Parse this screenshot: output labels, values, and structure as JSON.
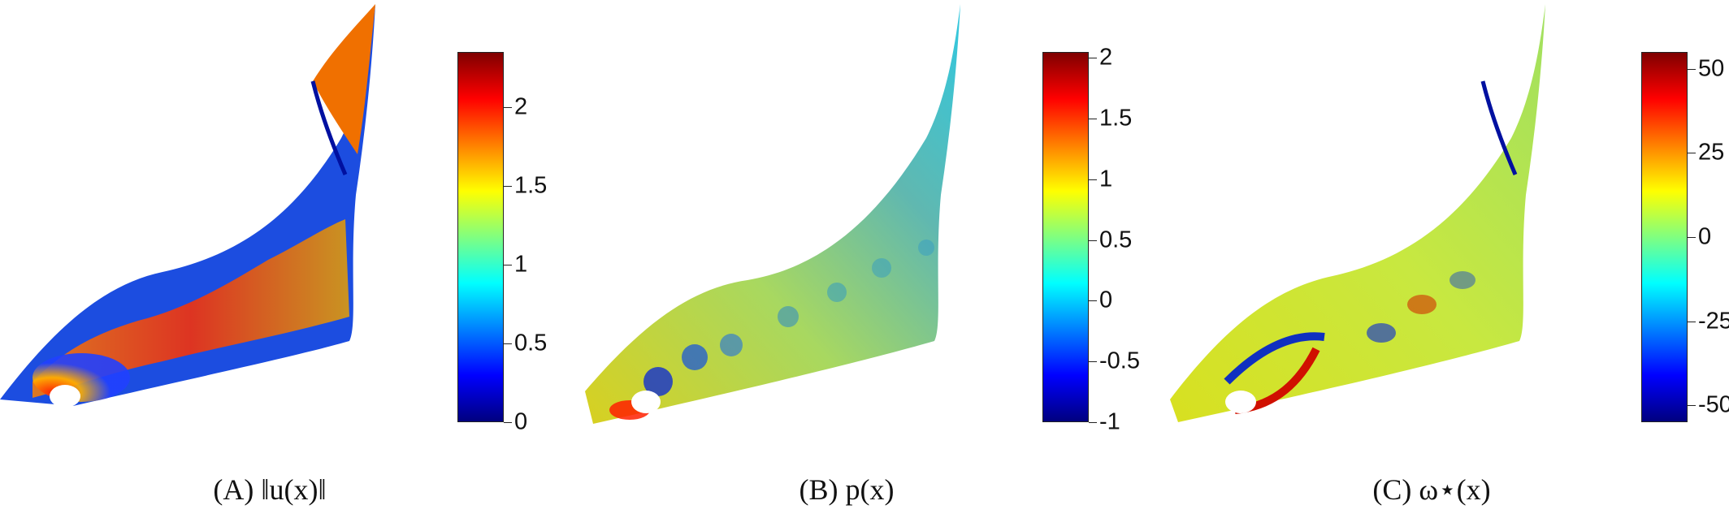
{
  "colormap": [
    "#00007f",
    "#0000ff",
    "#0080ff",
    "#00ffff",
    "#80ff80",
    "#ffff00",
    "#ff8000",
    "#ff0000",
    "#7f0000"
  ],
  "panels": [
    {
      "caption": "(A)  ‖u(x)‖",
      "colorbar": {
        "min": 0,
        "max": 2.35,
        "ticks": [
          "0",
          "0.5",
          "1",
          "1.5",
          "2"
        ],
        "tick_values": [
          0,
          0.5,
          1,
          1.5,
          2
        ]
      },
      "base_color": "#f0c020"
    },
    {
      "caption": "(B)  p(x)",
      "colorbar": {
        "min": -1,
        "max": 2.05,
        "ticks": [
          "-1",
          "-0.5",
          "0",
          "0.5",
          "1",
          "1.5",
          "2"
        ],
        "tick_values": [
          -1,
          -0.5,
          0,
          0.5,
          1,
          1.5,
          2
        ]
      },
      "base_color": "#8fcf5f"
    },
    {
      "caption": "(C)  ω⋆(x)",
      "colorbar": {
        "min": -55,
        "max": 55,
        "ticks": [
          "-50",
          "-25",
          "0",
          "25",
          "50"
        ],
        "tick_values": [
          -50,
          -25,
          0,
          25,
          50
        ]
      },
      "base_color": "#b9e84a"
    }
  ]
}
